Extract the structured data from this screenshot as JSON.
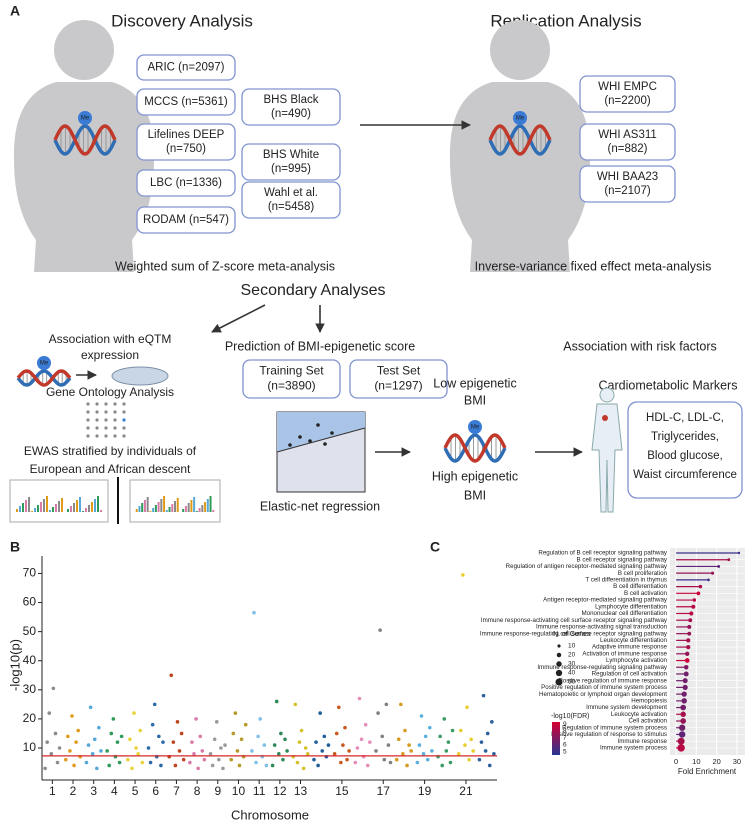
{
  "diagram": {
    "label": "A",
    "methyl_label": "Me",
    "discovery": {
      "title": "Discovery Analysis",
      "cohorts": [
        [
          "ARIC (n=2097)"
        ],
        [
          "MCCS (n=5361)"
        ],
        [
          "Lifelines DEEP",
          "(n=750)"
        ],
        [
          "LBC (n=1336)"
        ],
        [
          "RODAM (n=547)"
        ]
      ],
      "cohorts_2": [
        [
          "BHS Black",
          "(n=490)"
        ],
        [
          "BHS White",
          "(n=995)"
        ],
        [
          "Wahl et al.",
          "(n=5458)"
        ]
      ],
      "caption": "Weighted sum of Z-score meta-analysis"
    },
    "replication": {
      "title": "Replication Analysis",
      "cohorts": [
        [
          "WHI EMPC",
          "(n=2200)"
        ],
        [
          "WHI AS311",
          "(n=882)"
        ],
        [
          "WHI BAA23",
          "(n=2107)"
        ]
      ],
      "caption": "Inverse-variance fixed effect meta-analysis"
    },
    "secondary": {
      "title": "Secondary Analyses",
      "eqtm": {
        "lines": [
          "Association with eQTM",
          "expression"
        ],
        "go": "Gene Ontology Analysis",
        "ewas": [
          "EWAS stratified by individuals of",
          "European and African descent"
        ]
      },
      "prediction": {
        "title": "Prediction of BMI-epigenetic score",
        "training": [
          "Training Set",
          "(n=3890)"
        ],
        "test": [
          "Test Set",
          "(n=1297)"
        ],
        "method": "Elastic-net regression",
        "low": [
          "Low epigenetic",
          "BMI"
        ],
        "high": [
          "High epigenetic",
          "BMI"
        ]
      },
      "risk": {
        "title": "Association with risk factors",
        "markers": "Cardiometabolic Markers",
        "items": [
          "HDL-C, LDL-C,",
          "Triglycerides,",
          "Blood glucose,",
          "Waist circumference"
        ]
      }
    }
  },
  "chart_data": [
    {
      "type": "manhattan",
      "panel": "B",
      "ylabel": "-log10(p)",
      "xlabel": "Chromosome",
      "xticks": [
        1,
        2,
        3,
        4,
        5,
        6,
        7,
        8,
        9,
        10,
        11,
        12,
        13,
        15,
        17,
        19,
        21
      ],
      "xlim": [
        0.5,
        22.5
      ],
      "ylim": [
        -1,
        76
      ],
      "yticks": [
        10,
        20,
        30,
        40,
        50,
        60,
        70
      ],
      "threshold": 7.3,
      "threshold_color": "#d62728",
      "series": [
        {
          "color": "#8c8c8c",
          "x": [
            0.65,
            0.75,
            0.85,
            0.95,
            1.05,
            1.15,
            1.25,
            1.35
          ],
          "values": [
            3,
            12,
            22,
            8,
            30.5,
            15,
            5,
            10
          ]
        },
        {
          "color": "#e09b1b",
          "x": [
            1.65,
            1.75,
            1.85,
            1.95,
            2.05,
            2.15,
            2.25,
            2.35
          ],
          "values": [
            6,
            14,
            9,
            21,
            4,
            12,
            16,
            7
          ]
        },
        {
          "color": "#56a8d8",
          "x": [
            2.65,
            2.75,
            2.85,
            2.95,
            3.05,
            3.15,
            3.25,
            3.35
          ],
          "values": [
            5,
            11,
            24,
            8,
            13,
            3,
            17,
            9
          ]
        },
        {
          "color": "#2f9a5a",
          "x": [
            3.65,
            3.75,
            3.85,
            3.95,
            4.05,
            4.15,
            4.25,
            4.35
          ],
          "values": [
            9,
            4,
            15,
            20,
            7,
            12,
            5,
            14
          ]
        },
        {
          "color": "#e8d43a",
          "x": [
            4.65,
            4.75,
            4.85,
            4.95,
            5.05,
            5.15,
            5.25,
            5.35
          ],
          "values": [
            6,
            13,
            3,
            22,
            10,
            8,
            16,
            5
          ]
        },
        {
          "color": "#2b6aa8",
          "x": [
            5.65,
            5.75,
            5.85,
            5.95,
            6.05,
            6.15,
            6.25,
            6.35
          ],
          "values": [
            10,
            5,
            18,
            25,
            7,
            14,
            4,
            12
          ]
        },
        {
          "color": "#c0451e",
          "x": [
            6.65,
            6.75,
            6.85,
            6.95,
            7.05,
            7.15,
            7.25,
            7.35
          ],
          "values": [
            7,
            35,
            12,
            4,
            19,
            9,
            15,
            6
          ]
        },
        {
          "color": "#d97ba7",
          "x": [
            7.65,
            7.75,
            7.85,
            7.95,
            8.05,
            8.15,
            8.25,
            8.35
          ],
          "values": [
            5,
            12,
            8,
            20,
            3,
            14,
            9,
            6
          ]
        },
        {
          "color": "#9a9a9a",
          "x": [
            8.65,
            8.75,
            8.85,
            8.95,
            9.05,
            9.15,
            9.25,
            9.35
          ],
          "values": [
            8,
            4,
            13,
            19,
            6,
            10,
            3,
            11
          ]
        },
        {
          "color": "#b59a2b",
          "x": [
            9.65,
            9.75,
            9.85,
            9.95,
            10.05,
            10.15,
            10.25,
            10.35
          ],
          "values": [
            6,
            15,
            22,
            9,
            4,
            13,
            7,
            18
          ]
        },
        {
          "color": "#7fc1e6",
          "x": [
            10.65,
            10.75,
            10.85,
            10.95,
            11.05,
            11.15,
            11.25,
            11.35
          ],
          "values": [
            9,
            56.5,
            5,
            14,
            20,
            7,
            11,
            4
          ]
        },
        {
          "color": "#2e8b57",
          "x": [
            11.65,
            11.75,
            11.85,
            11.95,
            12.05,
            12.15,
            12.25,
            12.35
          ],
          "values": [
            4,
            11,
            26,
            8,
            15,
            6,
            13,
            9
          ]
        },
        {
          "color": "#d4c22a",
          "x": [
            12.65,
            12.75,
            12.85,
            12.95,
            13.05,
            13.15,
            13.25,
            13.35
          ],
          "values": [
            7,
            25,
            5,
            12,
            16,
            3,
            10,
            8
          ]
        },
        {
          "color": "#1f5e99",
          "x": [
            13.65,
            13.75,
            13.85,
            13.95,
            14.05,
            14.15,
            14.25,
            14.35
          ],
          "values": [
            6,
            12,
            4,
            22,
            9,
            14,
            7,
            11
          ]
        },
        {
          "color": "#c85a1f",
          "x": [
            14.65,
            14.75,
            14.85,
            14.95,
            15.05,
            15.15,
            15.25,
            15.35
          ],
          "values": [
            8,
            15,
            24,
            5,
            11,
            17,
            6,
            9
          ]
        },
        {
          "color": "#e58fb8",
          "x": [
            15.65,
            15.75,
            15.85,
            15.95,
            16.05,
            16.15,
            16.25,
            16.35
          ],
          "values": [
            5,
            10,
            27,
            13,
            7,
            18,
            4,
            12
          ]
        },
        {
          "color": "#808080",
          "x": [
            16.65,
            16.75,
            16.85,
            16.95,
            17.05,
            17.15,
            17.25,
            17.35
          ],
          "values": [
            9,
            22,
            50.5,
            14,
            6,
            25,
            11,
            5
          ]
        },
        {
          "color": "#d69a20",
          "x": [
            17.65,
            17.75,
            17.85,
            17.95,
            18.05,
            18.15,
            18.25,
            18.35
          ],
          "values": [
            6,
            13,
            25,
            8,
            16,
            4,
            11,
            9
          ]
        },
        {
          "color": "#5bb0dd",
          "x": [
            18.65,
            18.75,
            18.85,
            18.95,
            19.05,
            19.15,
            19.25,
            19.35
          ],
          "values": [
            5,
            11,
            21,
            8,
            14,
            6,
            17,
            9
          ]
        },
        {
          "color": "#3a9c63",
          "x": [
            19.65,
            19.75,
            19.85,
            19.95,
            20.05,
            20.15,
            20.25,
            20.35
          ],
          "values": [
            7,
            14,
            4,
            20,
            9,
            12,
            5,
            16
          ]
        },
        {
          "color": "#e8cf30",
          "x": [
            20.65,
            20.75,
            20.85,
            20.95,
            21.05,
            21.15,
            21.25,
            21.35
          ],
          "values": [
            8,
            16,
            69.5,
            11,
            24,
            6,
            13,
            9
          ]
        },
        {
          "color": "#2d5f9a",
          "x": [
            21.65,
            21.75,
            21.85,
            21.95,
            22.05,
            22.15,
            22.25,
            22.35
          ],
          "values": [
            6,
            12,
            28,
            9,
            15,
            4,
            19,
            8
          ]
        }
      ]
    },
    {
      "type": "lollipop",
      "panel": "C",
      "xlabel": "Fold Enrichment",
      "xlim": [
        -3,
        34
      ],
      "xticks": [
        0,
        10,
        20,
        30
      ],
      "grid": true,
      "categories": [
        "Regulation of B cell receptor signaling pathway",
        "B cell receptor signaling pathway",
        "Regulation of antigen receptor-mediated signaling pathway",
        "B cell proliferation",
        "T cell differentiation in thymus",
        "B cell differentiation",
        "B cell activation",
        "Antigen receptor-mediated signaling pathway",
        "Lymphocyte differentiation",
        "Mononuclear cell differentiation",
        "Immune response-activating cell surface receptor signaling pathway",
        "Immune response-activating signal transduction",
        "Immune response-regulating cell surface receptor signaling pathway",
        "Leukocyte differentiation",
        "Adaptive immune response",
        "Activation of immune response",
        "Lymphocyte activation",
        "Immune response-regulating signaling pathway",
        "Regulation of cell activation",
        "Positive regulation of immune response",
        "Positive regulation of immune system process",
        "Hematopoietic or lymphoid organ development",
        "Hemopoiesis",
        "Immune system development",
        "Leukocyte activation",
        "Cell activation",
        "Regulation of immune system process",
        "Positive regulation of response to stimulus",
        "Immune response",
        "Immune system process"
      ],
      "values": [
        31,
        26,
        21,
        18,
        16,
        12,
        11,
        9,
        8.5,
        7.5,
        7,
        6.5,
        6.5,
        6,
        6,
        5.5,
        5.5,
        5,
        5,
        4.5,
        4.5,
        4,
        4,
        3.5,
        3.5,
        3.5,
        3,
        3,
        2.5,
        2.5
      ],
      "genes": [
        6,
        8,
        8,
        10,
        7,
        12,
        14,
        12,
        16,
        17,
        15,
        17,
        15,
        18,
        18,
        19,
        22,
        20,
        24,
        25,
        27,
        28,
        30,
        32,
        30,
        32,
        40,
        42,
        48,
        55
      ],
      "fdr": [
        5,
        8,
        6,
        7.5,
        5,
        8,
        9,
        8.5,
        8.5,
        8.5,
        8,
        7.5,
        7.5,
        8,
        8,
        7.5,
        9,
        7,
        6.5,
        6.5,
        6.5,
        6.5,
        6.5,
        6.5,
        8,
        7.5,
        6.5,
        6,
        8,
        8.5
      ],
      "size_legend": {
        "title": "N. of Genes",
        "values": [
          10,
          20,
          30,
          40,
          50
        ]
      },
      "color_legend": {
        "title": "-log10(FDR)",
        "ticks": [
          9,
          8,
          7,
          6,
          5
        ],
        "lim": [
          4.5,
          9.3
        ],
        "low": "#283593",
        "high": "#d50032"
      }
    }
  ]
}
